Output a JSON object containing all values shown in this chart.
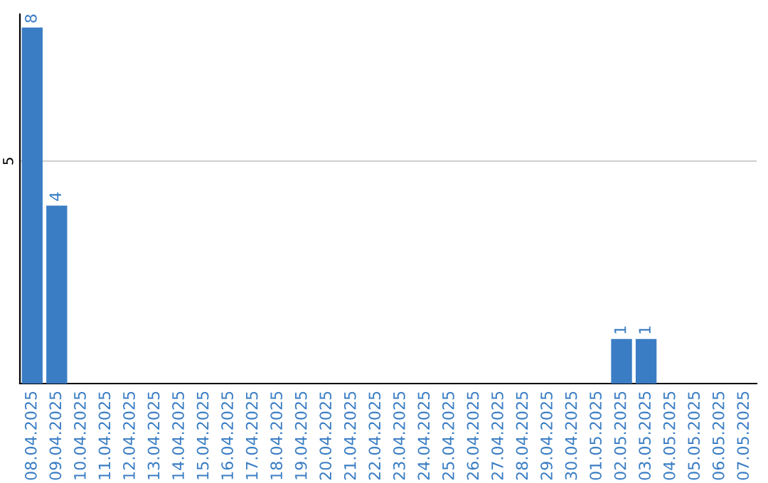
{
  "chart_data": {
    "type": "bar",
    "categories": [
      "08.04.2025",
      "09.04.2025",
      "10.04.2025",
      "11.04.2025",
      "12.04.2025",
      "13.04.2025",
      "14.04.2025",
      "15.04.2025",
      "16.04.2025",
      "17.04.2025",
      "18.04.2025",
      "19.04.2025",
      "20.04.2025",
      "21.04.2025",
      "22.04.2025",
      "23.04.2025",
      "24.04.2025",
      "25.04.2025",
      "26.04.2025",
      "27.04.2025",
      "28.04.2025",
      "29.04.2025",
      "30.04.2025",
      "01.05.2025",
      "02.05.2025",
      "03.05.2025",
      "04.05.2025",
      "05.05.2025",
      "06.05.2025",
      "07.05.2025"
    ],
    "values": [
      8,
      4,
      0,
      0,
      0,
      0,
      0,
      0,
      0,
      0,
      0,
      0,
      0,
      0,
      0,
      0,
      0,
      0,
      0,
      0,
      0,
      0,
      0,
      0,
      1,
      1,
      0,
      0,
      0,
      0
    ],
    "value_labels": [
      "8",
      "4",
      null,
      null,
      null,
      null,
      null,
      null,
      null,
      null,
      null,
      null,
      null,
      null,
      null,
      null,
      null,
      null,
      null,
      null,
      null,
      null,
      null,
      null,
      "1",
      "1",
      null,
      null,
      null,
      null
    ],
    "color": "#3a7dc4",
    "ylim": [
      0,
      8.3
    ],
    "yticks": [
      5
    ],
    "grid": "y",
    "legend": false
  }
}
